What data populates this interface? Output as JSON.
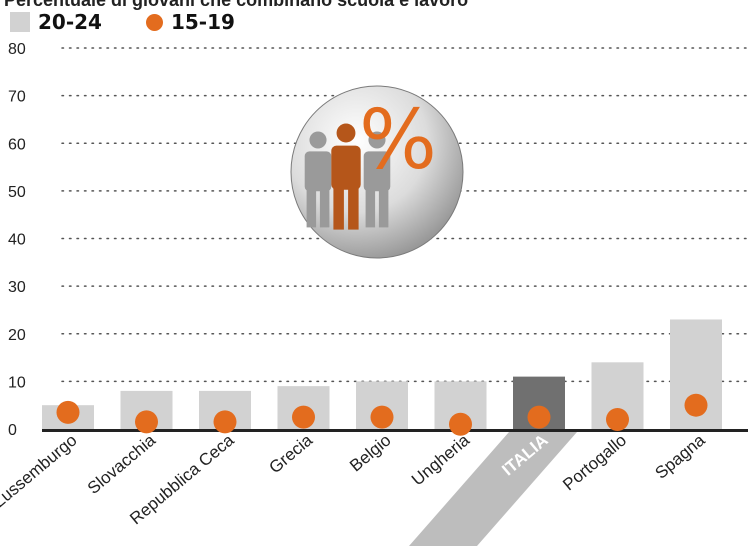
{
  "title": "Percentuale di giovani che combinano scuola e lavoro",
  "legend": {
    "series_a_label": "20-24",
    "series_b_label": "15-19"
  },
  "colors": {
    "bar": "#d2d2d2",
    "bar_highlight": "#707070",
    "dot": "#e36c1e",
    "axis": "#222222",
    "grid": "#555555"
  },
  "chart_data": {
    "type": "bar",
    "title": "Percentuale di giovani che combinano scuola e lavoro",
    "xlabel": "",
    "ylabel": "",
    "ylim": [
      0,
      80
    ],
    "yticks": [
      0,
      10,
      20,
      30,
      40,
      50,
      60,
      70,
      80
    ],
    "grid": true,
    "legend_position": "top-left",
    "categories": [
      "Lussemburgo",
      "Slovacchia",
      "Repubblica Ceca",
      "Grecia",
      "Belgio",
      "Ungheria",
      "ITALIA",
      "Portogallo",
      "Spagna"
    ],
    "highlight": "ITALIA",
    "series": [
      {
        "name": "20-24",
        "mark": "bar",
        "values": [
          5,
          8,
          8,
          9,
          10,
          10,
          11,
          14,
          23
        ]
      },
      {
        "name": "15-19",
        "mark": "dot",
        "values": [
          3.5,
          1.5,
          1.5,
          2.5,
          2.5,
          1,
          2.5,
          2,
          5
        ]
      }
    ]
  },
  "icon": {
    "name": "percent-people-icon",
    "glyph": "%"
  }
}
